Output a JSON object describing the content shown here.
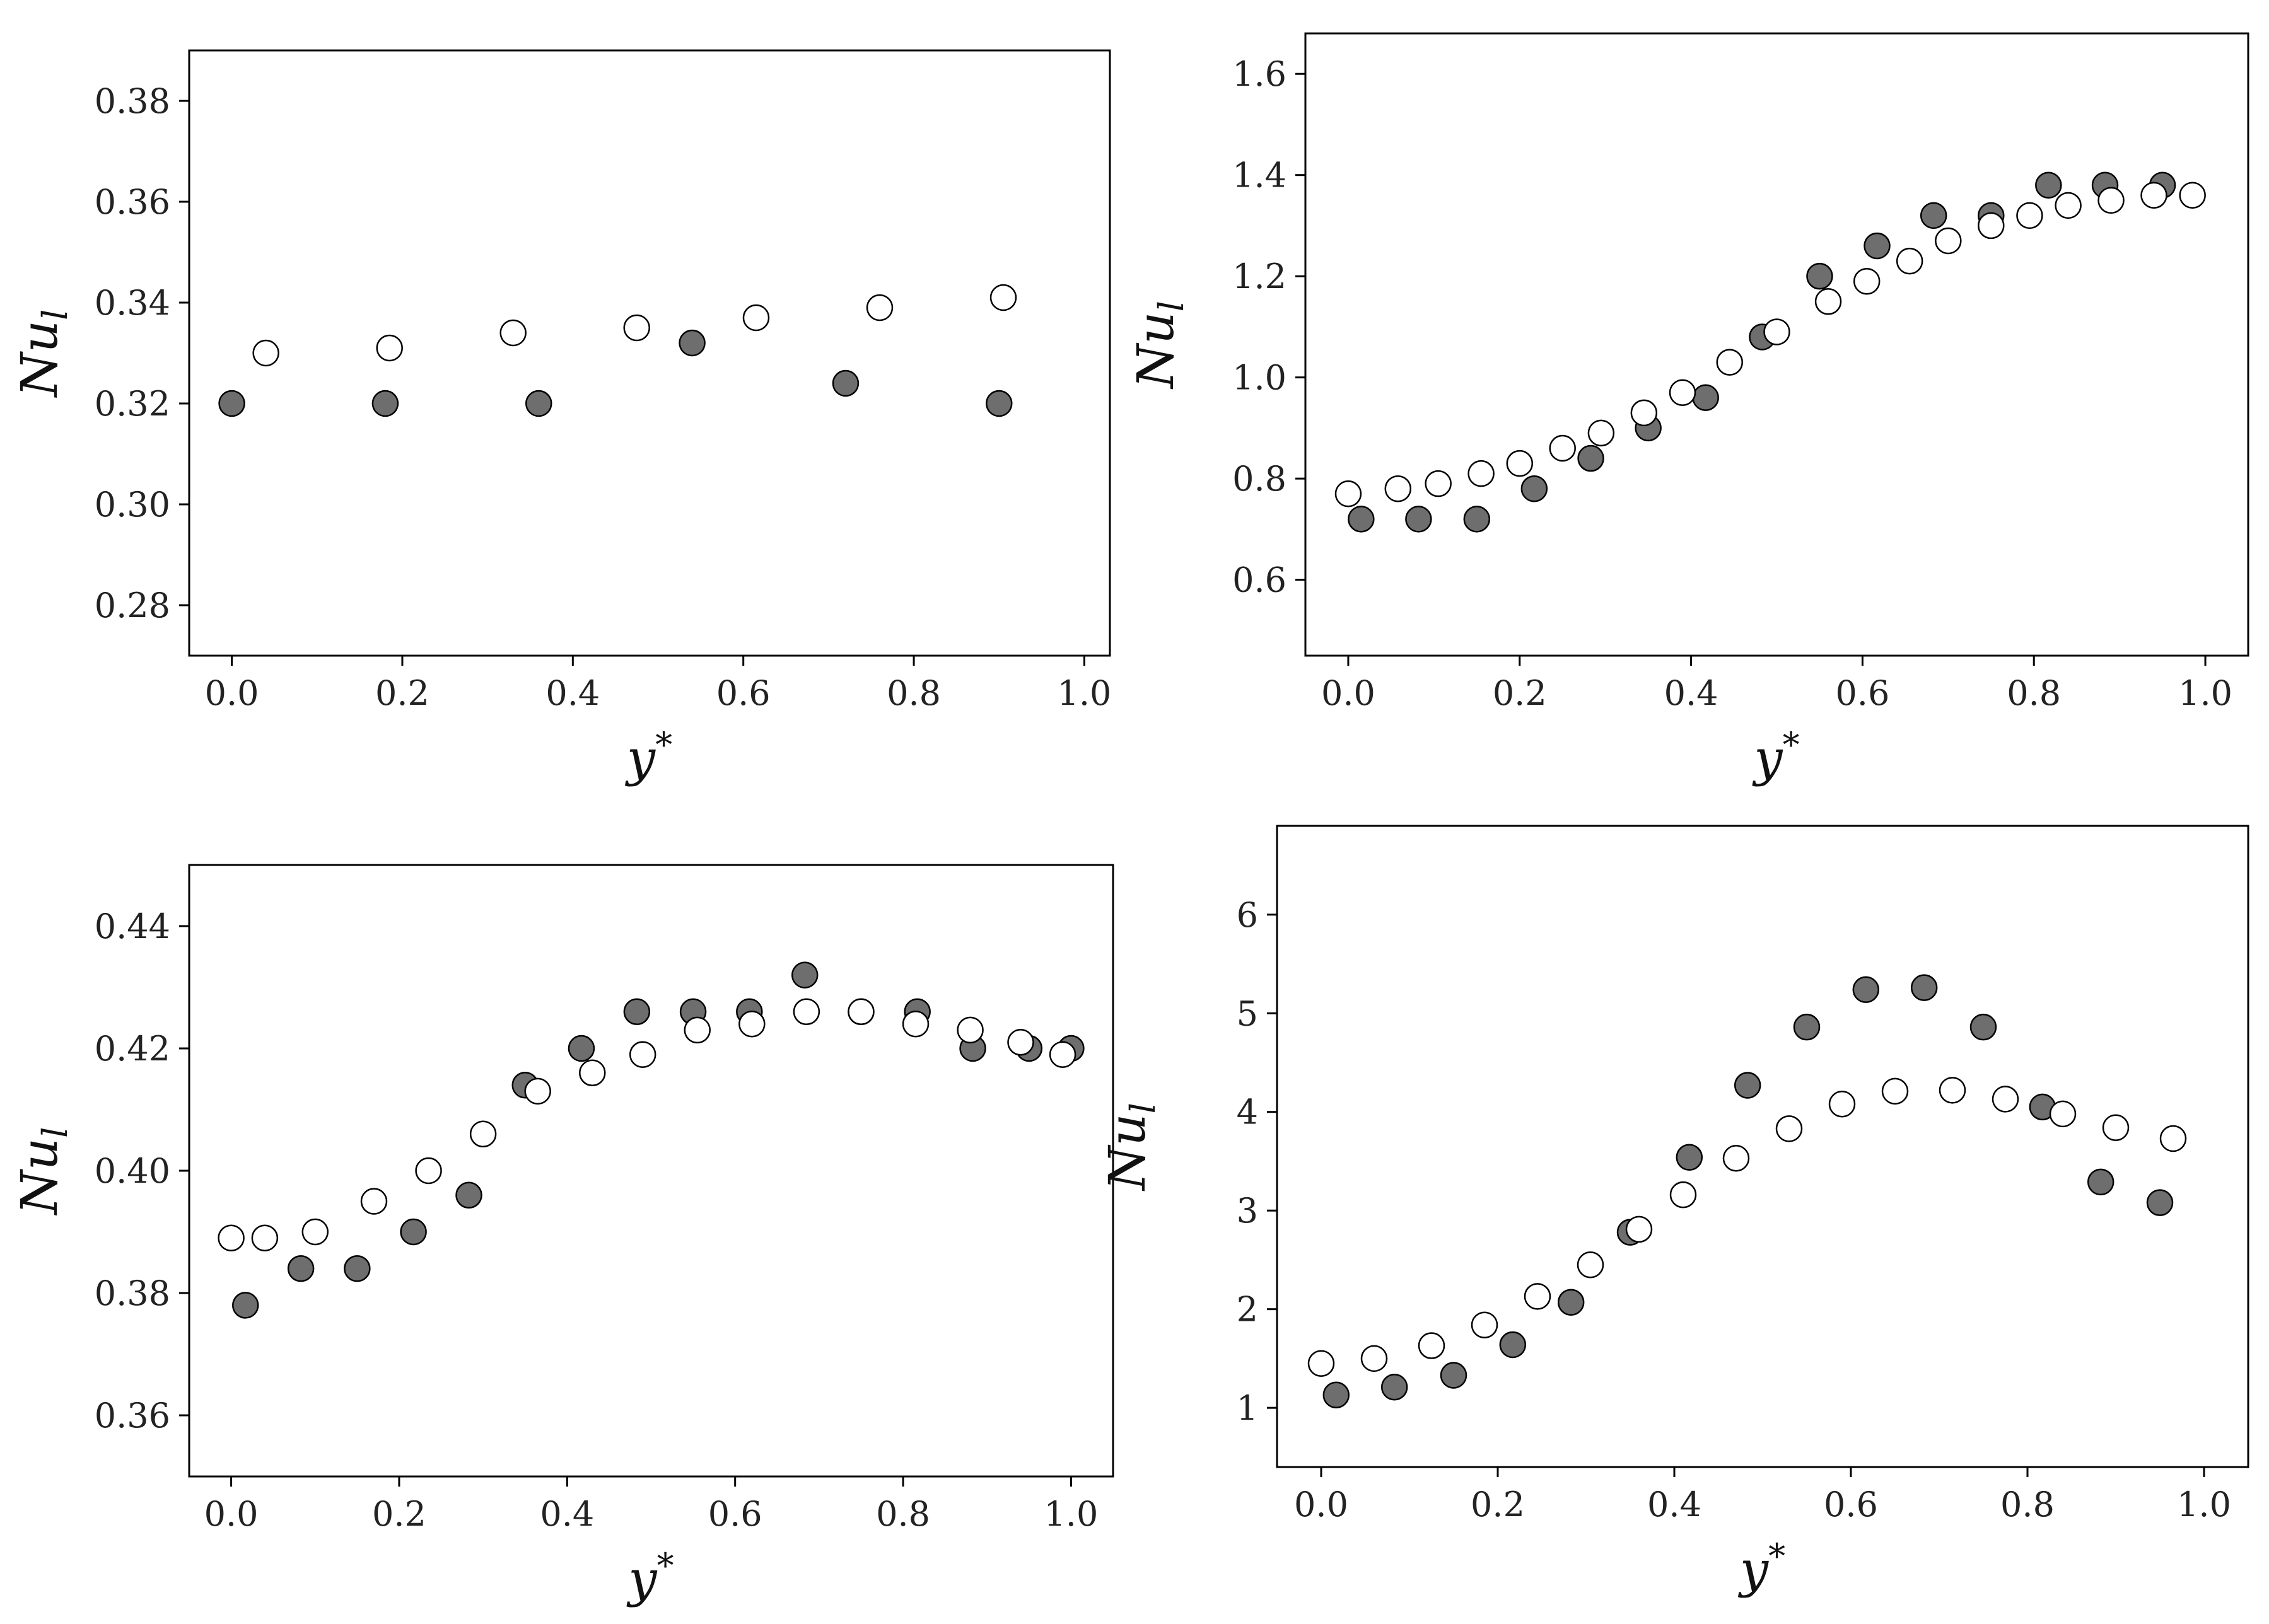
{
  "chart_data": [
    {
      "type": "scatter",
      "xlabel": "y*",
      "ylabel": "Nu_l",
      "xlim": [
        -0.05,
        1.03
      ],
      "ylim": [
        0.27,
        0.39
      ],
      "xticks": [
        "0.0",
        "0.2",
        "0.4",
        "0.6",
        "0.8",
        "1.0"
      ],
      "yticks": [
        "0.28",
        "0.30",
        "0.32",
        "0.34",
        "0.36",
        "0.38"
      ],
      "grid": false,
      "series": [
        {
          "style": "filled",
          "color": "#6e6e6e",
          "x": [
            0.0,
            0.18,
            0.36,
            0.54,
            0.72,
            0.9
          ],
          "y": [
            0.32,
            0.32,
            0.32,
            0.332,
            0.324,
            0.32
          ]
        },
        {
          "style": "hollow",
          "color": "#ffffff",
          "x": [
            0.04,
            0.185,
            0.33,
            0.475,
            0.615,
            0.76,
            0.905
          ],
          "y": [
            0.33,
            0.331,
            0.334,
            0.335,
            0.337,
            0.339,
            0.341
          ]
        }
      ]
    },
    {
      "type": "scatter",
      "xlabel": "y*",
      "ylabel": "Nu_l",
      "xlim": [
        -0.05,
        1.05
      ],
      "ylim": [
        0.45,
        1.68
      ],
      "xticks": [
        "0.0",
        "0.2",
        "0.4",
        "0.6",
        "0.8",
        "1.0"
      ],
      "yticks": [
        "0.6",
        "0.8",
        "1.0",
        "1.2",
        "1.4",
        "1.6"
      ],
      "grid": false,
      "series": [
        {
          "style": "filled",
          "color": "#6e6e6e",
          "x": [
            0.015,
            0.082,
            0.15,
            0.217,
            0.283,
            0.35,
            0.417,
            0.483,
            0.55,
            0.617,
            0.683,
            0.75,
            0.817,
            0.883,
            0.95
          ],
          "y": [
            0.72,
            0.72,
            0.72,
            0.78,
            0.84,
            0.9,
            0.96,
            1.08,
            1.2,
            1.26,
            1.32,
            1.32,
            1.38,
            1.38,
            1.38
          ]
        },
        {
          "style": "hollow",
          "color": "#ffffff",
          "x": [
            0.0,
            0.058,
            0.105,
            0.155,
            0.2,
            0.25,
            0.295,
            0.345,
            0.39,
            0.445,
            0.5,
            0.56,
            0.605,
            0.655,
            0.7,
            0.75,
            0.795,
            0.84,
            0.89,
            0.94,
            0.985
          ],
          "y": [
            0.77,
            0.78,
            0.79,
            0.81,
            0.83,
            0.86,
            0.89,
            0.93,
            0.97,
            1.03,
            1.09,
            1.15,
            1.19,
            1.23,
            1.27,
            1.3,
            1.32,
            1.34,
            1.35,
            1.36,
            1.36
          ]
        }
      ]
    },
    {
      "type": "scatter",
      "xlabel": "y*",
      "ylabel": "Nu_l",
      "xlim": [
        -0.05,
        1.05
      ],
      "ylim": [
        0.35,
        0.45
      ],
      "xticks": [
        "0.0",
        "0.2",
        "0.4",
        "0.6",
        "0.8",
        "1.0"
      ],
      "yticks": [
        "0.36",
        "0.38",
        "0.40",
        "0.42",
        "0.44"
      ],
      "grid": false,
      "series": [
        {
          "style": "filled",
          "color": "#6e6e6e",
          "x": [
            0.017,
            0.083,
            0.15,
            0.217,
            0.283,
            0.35,
            0.417,
            0.483,
            0.55,
            0.617,
            0.683,
            0.75,
            0.817,
            0.883,
            0.95,
            1.0
          ],
          "y": [
            0.378,
            0.384,
            0.384,
            0.39,
            0.396,
            0.414,
            0.42,
            0.426,
            0.426,
            0.426,
            0.432,
            0.426,
            0.426,
            0.42,
            0.42,
            0.42
          ]
        },
        {
          "style": "hollow",
          "color": "#ffffff",
          "x": [
            0.0,
            0.04,
            0.1,
            0.17,
            0.235,
            0.3,
            0.365,
            0.43,
            0.49,
            0.555,
            0.62,
            0.685,
            0.75,
            0.815,
            0.88,
            0.94,
            0.99
          ],
          "y": [
            0.389,
            0.389,
            0.39,
            0.395,
            0.4,
            0.406,
            0.413,
            0.416,
            0.419,
            0.423,
            0.424,
            0.426,
            0.426,
            0.424,
            0.423,
            0.421,
            0.419
          ]
        }
      ]
    },
    {
      "type": "scatter",
      "xlabel": "y*",
      "ylabel": "Nu_l",
      "xlim": [
        -0.05,
        1.05
      ],
      "ylim": [
        0.4,
        6.9
      ],
      "xticks": [
        "0.0",
        "0.2",
        "0.4",
        "0.6",
        "0.8",
        "1.0"
      ],
      "yticks": [
        "1",
        "2",
        "3",
        "4",
        "5",
        "6"
      ],
      "grid": false,
      "series": [
        {
          "style": "filled",
          "color": "#6e6e6e",
          "x": [
            0.017,
            0.083,
            0.15,
            0.217,
            0.283,
            0.35,
            0.417,
            0.483,
            0.55,
            0.617,
            0.683,
            0.75,
            0.817,
            0.883,
            0.95
          ],
          "y": [
            1.13,
            1.21,
            1.33,
            1.64,
            2.07,
            2.78,
            3.54,
            4.27,
            4.86,
            5.24,
            5.26,
            4.86,
            4.05,
            3.29,
            3.08
          ]
        },
        {
          "style": "hollow",
          "color": "#ffffff",
          "x": [
            0.0,
            0.06,
            0.125,
            0.185,
            0.245,
            0.305,
            0.36,
            0.41,
            0.47,
            0.53,
            0.59,
            0.65,
            0.715,
            0.775,
            0.84,
            0.9,
            0.965
          ],
          "y": [
            1.45,
            1.5,
            1.63,
            1.84,
            2.13,
            2.45,
            2.81,
            3.16,
            3.53,
            3.83,
            4.08,
            4.21,
            4.22,
            4.13,
            3.98,
            3.84,
            3.73
          ]
        }
      ]
    }
  ]
}
